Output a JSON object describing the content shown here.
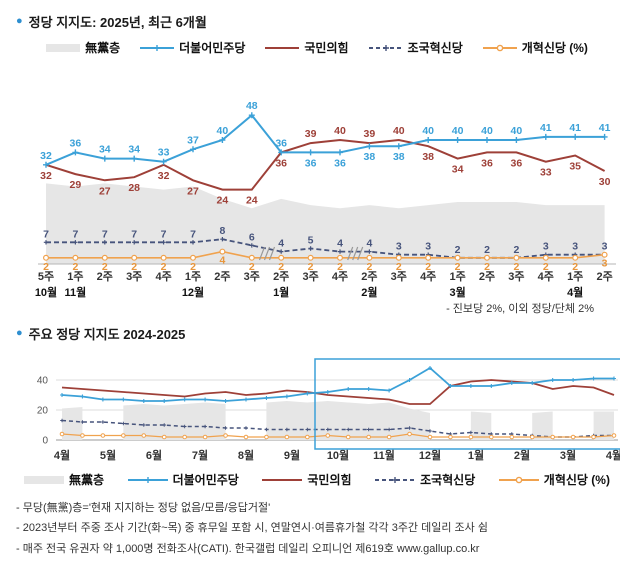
{
  "icons": {
    "bullet": "●"
  },
  "colors": {
    "accent_blue": "#3ba1d8",
    "brick_red": "#9e4038",
    "navy": "#47547c",
    "orange": "#f0a24e",
    "gray_area": "#e6e6e6"
  },
  "chart_data": [
    {
      "type": "line",
      "title": "정당 지지도: 2025년, 최근 6개월",
      "unit": "%",
      "ylim": [
        0,
        50
      ],
      "annotation": "- 진보당 2%, 이외 정당/단체 2%",
      "x_week_labels": [
        "5주",
        "1주",
        "2주",
        "3주",
        "4주",
        "1주",
        "2주",
        "3주",
        "2주",
        "3주",
        "4주",
        "2주",
        "3주",
        "4주",
        "1주",
        "2주",
        "3주",
        "4주",
        "1주",
        "2주"
      ],
      "x_month_labels": [
        {
          "index": 0,
          "label": "10월"
        },
        {
          "index": 1,
          "label": "11월"
        },
        {
          "index": 5,
          "label": "12월"
        },
        {
          "index": 8,
          "label": "1월"
        },
        {
          "index": 11,
          "label": "2월"
        },
        {
          "index": 14,
          "label": "3월"
        },
        {
          "index": 18,
          "label": "4월"
        }
      ],
      "breaks_after_index": [
        7,
        10
      ],
      "series": [
        {
          "key": "mudang",
          "name": "無黨층",
          "type": "area",
          "marker": "none",
          "dash": false,
          "color": "#e6e6e6",
          "show_labels": false,
          "values": [
            26,
            25,
            26,
            25,
            24,
            25,
            21,
            18,
            21,
            19,
            18,
            19,
            18,
            19,
            20,
            20,
            20,
            19,
            19,
            19
          ]
        },
        {
          "key": "minju",
          "name": "더불어민주당",
          "type": "line",
          "marker": "plus",
          "dash": false,
          "color": "#3ba1d8",
          "show_labels": true,
          "values": [
            32,
            36,
            34,
            34,
            33,
            37,
            40,
            48,
            36,
            36,
            36,
            38,
            38,
            40,
            40,
            40,
            40,
            41,
            41,
            41
          ]
        },
        {
          "key": "kukhim",
          "name": "국민의힘",
          "type": "line",
          "marker": "none",
          "dash": false,
          "color": "#9e4038",
          "show_labels": true,
          "values": [
            32,
            29,
            27,
            28,
            32,
            27,
            24,
            24,
            36,
            39,
            40,
            39,
            40,
            38,
            34,
            36,
            36,
            33,
            35,
            30
          ]
        },
        {
          "key": "joguk",
          "name": "조국혁신당",
          "type": "line",
          "marker": "plus",
          "dash": true,
          "color": "#47547c",
          "show_labels": true,
          "values": [
            7,
            7,
            7,
            7,
            7,
            7,
            8,
            6,
            4,
            5,
            4,
            4,
            3,
            3,
            2,
            2,
            2,
            3,
            3,
            3
          ]
        },
        {
          "key": "gaehyuk",
          "name": "개혁신당 (%)",
          "type": "line",
          "marker": "circle",
          "dash": false,
          "color": "#f0a24e",
          "show_labels": true,
          "values": [
            2,
            2,
            2,
            2,
            2,
            2,
            4,
            2,
            2,
            2,
            2,
            2,
            2,
            2,
            2,
            2,
            2,
            2,
            2,
            3
          ]
        }
      ]
    },
    {
      "type": "line",
      "title": "주요 정당 지지도 2024-2025",
      "unit": "%",
      "ylim": [
        0,
        50
      ],
      "y_ticks": [
        0,
        20,
        40
      ],
      "x_month_labels": [
        "4월",
        "5월",
        "6월",
        "7월",
        "8월",
        "9월",
        "10월",
        "11월",
        "12월",
        "1월",
        "2월",
        "3월",
        "4월"
      ],
      "highlight_box": {
        "from_month_index": 5.5,
        "color": "#3ba1d8"
      },
      "series": [
        {
          "key": "mudang",
          "name": "無黨층",
          "type": "area",
          "marker": "none",
          "dash": false,
          "color": "#e6e6e6",
          "show_labels": false,
          "values": [
            21,
            22,
            null,
            23,
            24,
            23,
            24,
            25,
            24,
            null,
            25,
            26,
            25,
            26,
            25,
            24,
            25,
            21,
            18,
            null,
            19,
            18,
            null,
            18,
            19,
            null,
            19,
            19
          ]
        },
        {
          "key": "minju",
          "name": "더불어민주당",
          "type": "line",
          "marker": "plus",
          "dash": false,
          "color": "#3ba1d8",
          "show_labels": false,
          "values": [
            30,
            29,
            27,
            27,
            26,
            26,
            27,
            27,
            26,
            27,
            28,
            29,
            31,
            32,
            34,
            34,
            33,
            40,
            48,
            36,
            36,
            36,
            38,
            38,
            40,
            40,
            41,
            41
          ]
        },
        {
          "key": "kukhim",
          "name": "국민의힘",
          "type": "line",
          "marker": "none",
          "dash": false,
          "color": "#9e4038",
          "show_labels": false,
          "values": [
            35,
            34,
            33,
            32,
            31,
            30,
            29,
            31,
            32,
            30,
            31,
            33,
            32,
            30,
            29,
            28,
            27,
            24,
            24,
            36,
            39,
            40,
            39,
            38,
            34,
            36,
            35,
            30
          ]
        },
        {
          "key": "joguk",
          "name": "조국혁신당",
          "type": "line",
          "marker": "plus",
          "dash": true,
          "color": "#47547c",
          "show_labels": false,
          "values": [
            13,
            12,
            12,
            11,
            10,
            10,
            9,
            9,
            8,
            8,
            7,
            7,
            7,
            7,
            7,
            7,
            7,
            8,
            6,
            4,
            5,
            4,
            4,
            3,
            2,
            2,
            3,
            3
          ]
        },
        {
          "key": "gaehyuk",
          "name": "개혁신당 (%)",
          "type": "line",
          "marker": "circle",
          "dash": false,
          "color": "#f0a24e",
          "show_labels": false,
          "values": [
            4,
            3,
            3,
            3,
            3,
            2,
            2,
            2,
            3,
            2,
            2,
            2,
            2,
            3,
            2,
            2,
            2,
            4,
            2,
            2,
            2,
            2,
            2,
            2,
            2,
            2,
            2,
            3
          ]
        }
      ]
    }
  ],
  "footnotes": [
    "- 무당(無黨)층='현재 지지하는 정당 없음/모름/응답거절'",
    "- 2023년부터 주중 조사 기간(화~목) 중 휴무일 포함 시, 연말연시·여름휴가철 각각 3주간 데일리 조사 쉼",
    "- 매주 전국 유권자 약 1,000명 전화조사(CATI). 한국갤럽 데일리 오피니언 제619호 www.gallup.co.kr"
  ]
}
